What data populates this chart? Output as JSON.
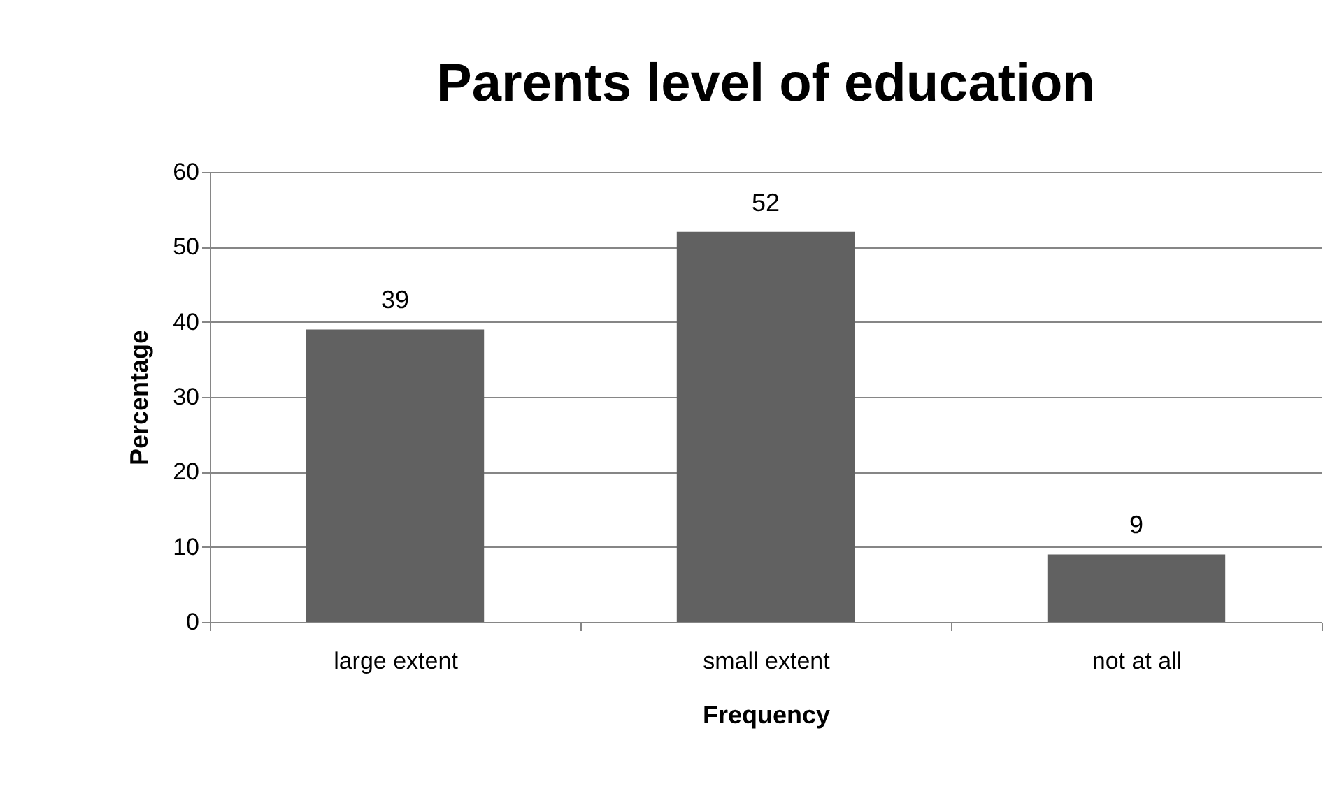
{
  "chart_data": {
    "type": "bar",
    "title": "Parents level of education",
    "xlabel": "Frequency",
    "ylabel": "Percentage",
    "categories": [
      "large extent",
      "small extent",
      "not at all"
    ],
    "values": [
      39,
      52,
      9
    ],
    "color": "#616161",
    "ylim": [
      0,
      60
    ],
    "yticks": [
      0,
      10,
      20,
      30,
      40,
      50,
      60
    ],
    "grid": "y",
    "data_labels": true
  }
}
